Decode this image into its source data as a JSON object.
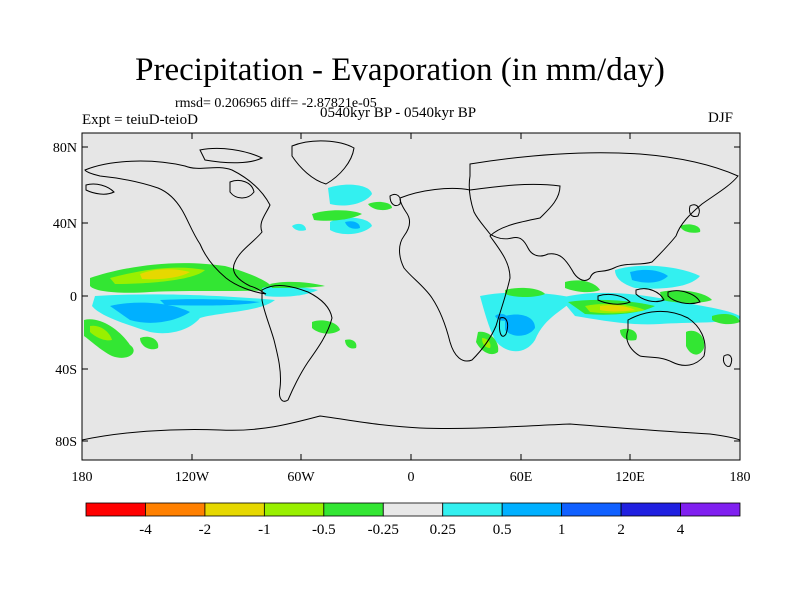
{
  "title": "Precipitation - Evaporation (in mm/day)",
  "stats": "rmsd= 0.206965 diff= -2.87821e-05",
  "experiment": "Expt = teiuD-teioD",
  "period": "0540kyr BP - 0540kyr BP",
  "season": "DJF",
  "lat_ticks": [
    "80N",
    "40N",
    "0",
    "40S",
    "80S"
  ],
  "lon_ticks": [
    "180",
    "120W",
    "60W",
    "0",
    "60E",
    "120E",
    "180"
  ],
  "colorbar": {
    "labels": [
      "-4",
      "-2",
      "-1",
      "-0.5",
      "-0.25",
      "0.25",
      "0.5",
      "1",
      "2",
      "4"
    ],
    "colors": [
      "#ff0000",
      "#ff8000",
      "#e6d800",
      "#99f000",
      "#33e633",
      "#e8e8e8",
      "#33f0f0",
      "#00b0ff",
      "#1060ff",
      "#2020e0",
      "#8020f0"
    ]
  },
  "colors": {
    "ocean": "#e6e6e6",
    "coast": "#000000"
  }
}
